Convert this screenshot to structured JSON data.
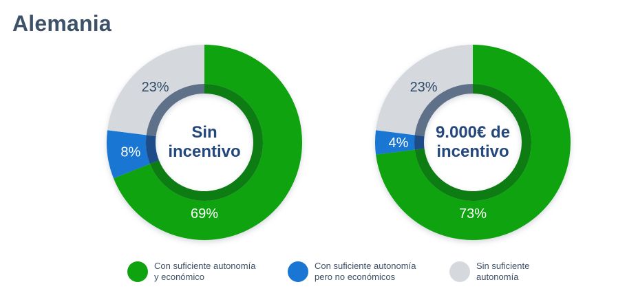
{
  "title": "Alemania",
  "colors": {
    "title_text": "#3D5269",
    "center_text": "#24477C",
    "legend_text": "#3F5066",
    "background": "#FFFFFF"
  },
  "chart_data": {
    "type": "pie",
    "variant": "donut-pair",
    "unit": "%",
    "start_angle_deg": 0,
    "direction": "clockwise",
    "legend_position": "bottom",
    "categories": [
      "Con suficiente autonomía y económico",
      "Con suficiente autonomía pero no económicos",
      "Sin suficiente autonomía"
    ],
    "series_colors": [
      "#0FA30F",
      "#1976D2",
      "#D5D9DE"
    ],
    "inner_ring_colors": [
      "#0C7C13",
      "#1D4C89",
      "#5E7189"
    ],
    "value_label_colors": [
      "#FFFFFF",
      "#FFFFFF",
      "#2E4A68"
    ],
    "charts": [
      {
        "id": "sin-incentivo",
        "center_label": "Sin incentivo",
        "center_label_lines": [
          "Sin",
          "incentivo"
        ],
        "values": [
          69,
          8,
          23
        ],
        "labels": [
          "69%",
          "8%",
          "23%"
        ]
      },
      {
        "id": "9000-eur-de-incentivo",
        "center_label": "9.000€ de incentivo",
        "center_label_lines": [
          "9.000€ de",
          "incentivo"
        ],
        "values": [
          73,
          4,
          23
        ],
        "labels": [
          "73%",
          "4%",
          "23%"
        ]
      }
    ],
    "legend": [
      {
        "label": "Con suficiente autonomía y económico",
        "lines": [
          "Con suficiente autonomía",
          "y económico"
        ]
      },
      {
        "label": "Con suficiente autonomía pero no económicos",
        "lines": [
          "Con suficiente autonomía",
          "pero no económicos"
        ]
      },
      {
        "label": "Sin suficiente autonomía",
        "lines": [
          "Sin suficiente",
          "autonomía"
        ]
      }
    ]
  }
}
